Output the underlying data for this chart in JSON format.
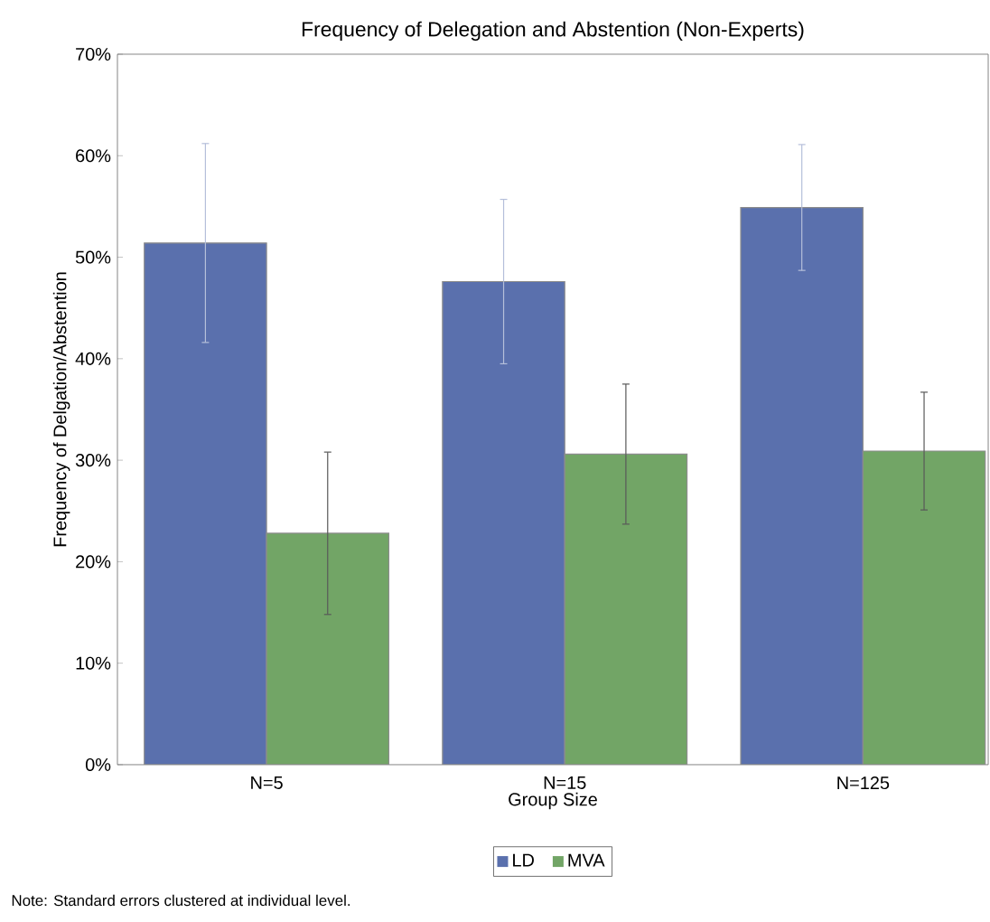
{
  "chart_data": {
    "type": "bar",
    "title": "Frequency of Delegation and Abstention (Non-Experts)",
    "xlabel": "Group Size",
    "ylabel": "Frequency of Delgation/Abstention",
    "categories": [
      "N=5",
      "N=15",
      "N=125"
    ],
    "series": [
      {
        "name": "LD",
        "color": "#5a70ad",
        "values": [
          51.4,
          47.6,
          54.9
        ],
        "errors": [
          9.8,
          8.1,
          6.2
        ]
      },
      {
        "name": "MVA",
        "color": "#72a566",
        "values": [
          22.8,
          30.6,
          30.9
        ],
        "errors": [
          8.0,
          6.9,
          5.8
        ]
      }
    ],
    "ylim": [
      0,
      70
    ],
    "yticks": [
      {
        "value": 0,
        "label": "0%"
      },
      {
        "value": 10,
        "label": "10%"
      },
      {
        "value": 20,
        "label": "20%"
      },
      {
        "value": 30,
        "label": "30%"
      },
      {
        "value": 40,
        "label": "40%"
      },
      {
        "value": 50,
        "label": "50%"
      },
      {
        "value": 60,
        "label": "60%"
      },
      {
        "value": 70,
        "label": "70%"
      }
    ],
    "grid": false,
    "legend": "bottom",
    "annotations": [
      "Note: Standard errors clustered at individual level."
    ]
  }
}
